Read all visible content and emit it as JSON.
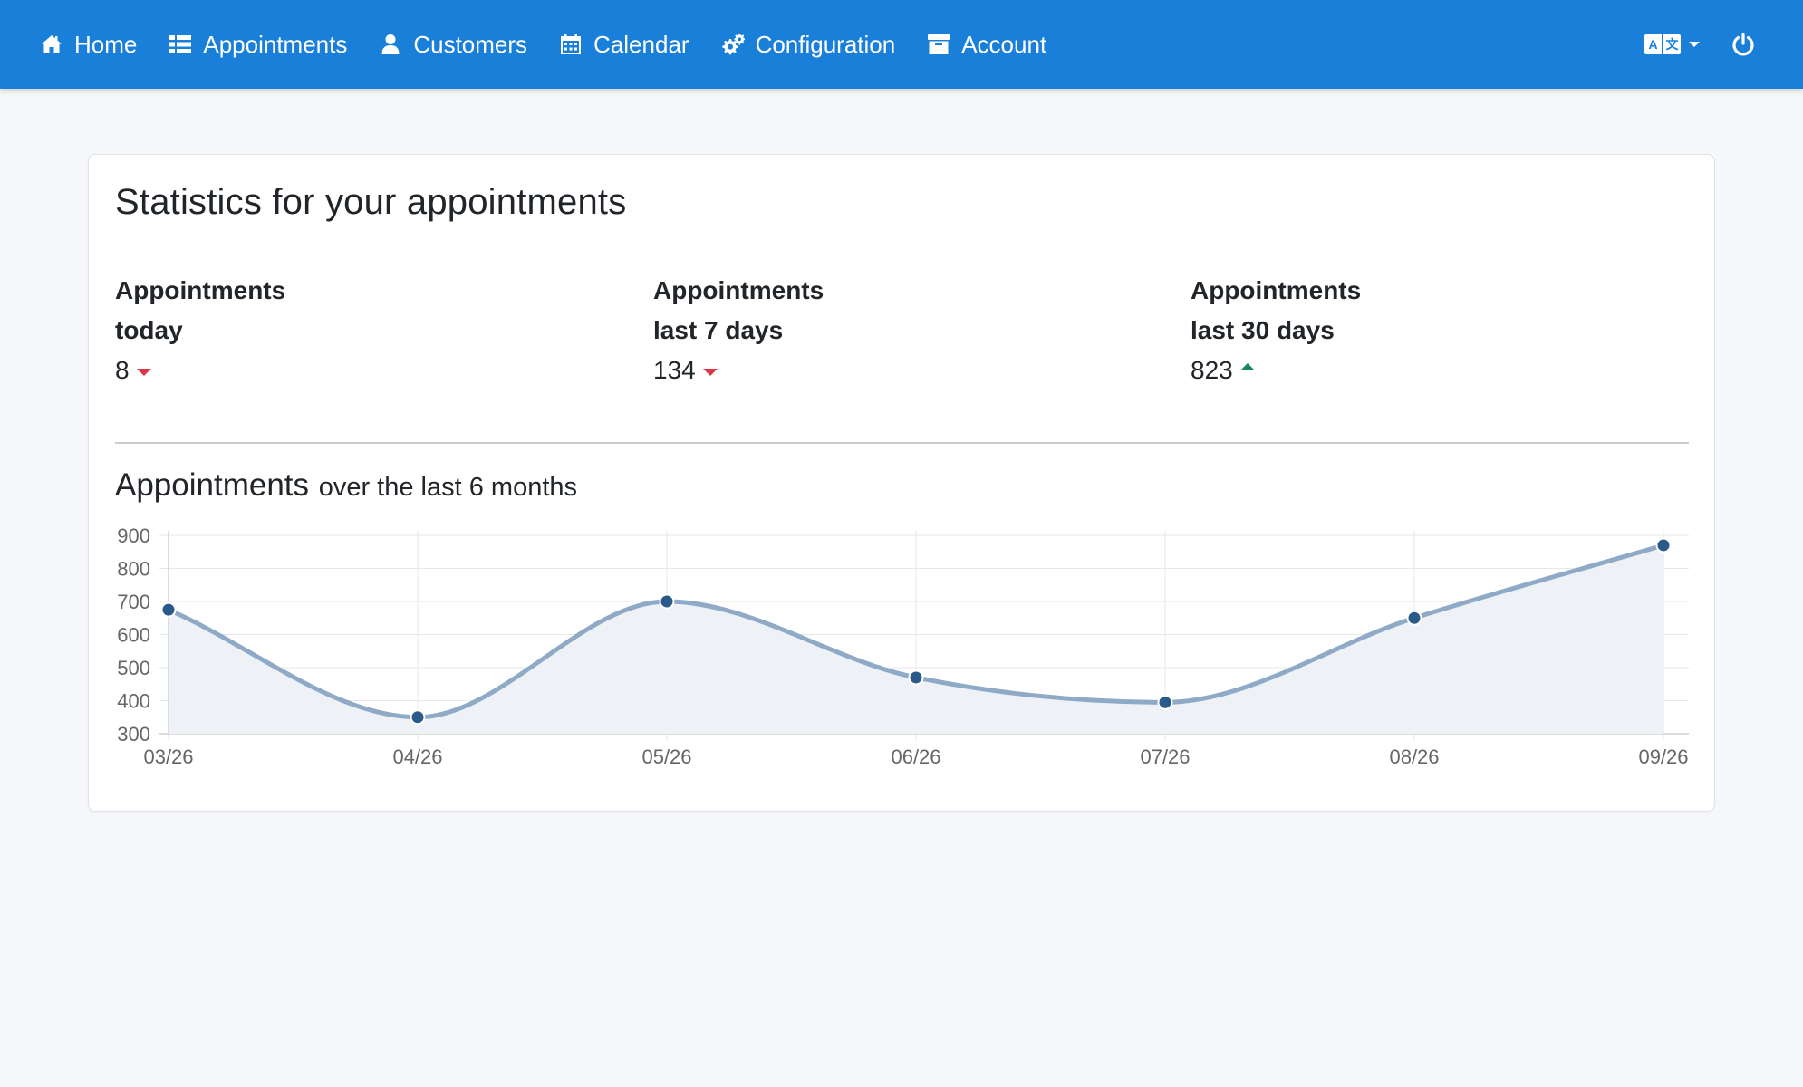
{
  "navbar": {
    "items": [
      {
        "label": "Home",
        "icon": "home-icon"
      },
      {
        "label": "Appointments",
        "icon": "list-icon"
      },
      {
        "label": "Customers",
        "icon": "user-icon"
      },
      {
        "label": "Calendar",
        "icon": "calendar-icon"
      },
      {
        "label": "Configuration",
        "icon": "gears-icon"
      },
      {
        "label": "Account",
        "icon": "archive-icon"
      }
    ],
    "language_icon": "language-icon",
    "power_icon": "power-icon"
  },
  "page": {
    "title": "Statistics for your appointments"
  },
  "stats": [
    {
      "label_line1": "Appointments",
      "label_line2": "today",
      "value": "8",
      "trend": "down"
    },
    {
      "label_line1": "Appointments",
      "label_line2": "last 7 days",
      "value": "134",
      "trend": "down"
    },
    {
      "label_line1": "Appointments",
      "label_line2": "last 30 days",
      "value": "823",
      "trend": "up"
    }
  ],
  "chart_heading": {
    "main": "Appointments",
    "sub": "over the last 6 months"
  },
  "colors": {
    "navbar": "#1a7fd9",
    "line": "#8faac6",
    "fill": "#eef1f6",
    "point": "#2a5a8a",
    "trend_down": "#dc3545",
    "trend_up": "#198754"
  },
  "chart_data": {
    "type": "area",
    "categories": [
      "03/26",
      "04/26",
      "05/26",
      "06/26",
      "07/26",
      "08/26",
      "09/26"
    ],
    "values": [
      675,
      350,
      700,
      470,
      395,
      650,
      870
    ],
    "ylim": [
      300,
      900
    ],
    "yticks": [
      300,
      400,
      500,
      600,
      700,
      800,
      900
    ],
    "grid": true,
    "legend": "none",
    "title": "",
    "xlabel": "",
    "ylabel": ""
  }
}
